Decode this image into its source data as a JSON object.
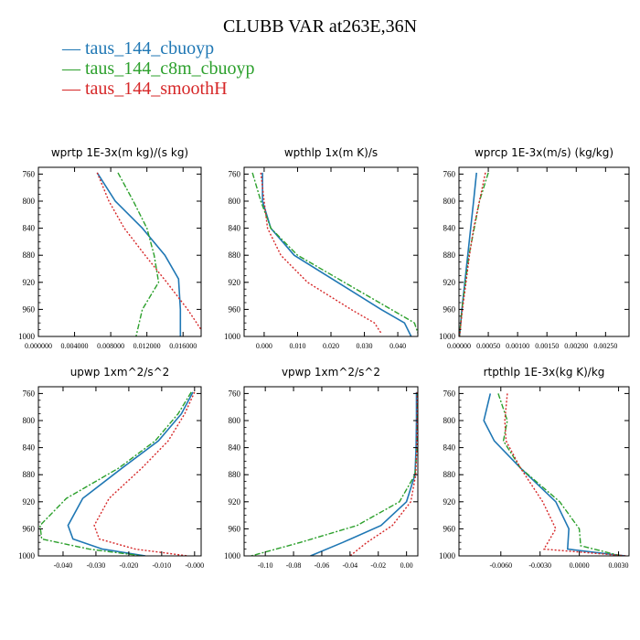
{
  "title": "CLUBB VAR at263E,36N",
  "legend": [
    {
      "label": "taus_144_cbuoyp",
      "color": "#1f77b4"
    },
    {
      "label": "taus_144_c8m_cbuoyp",
      "color": "#2ca02c"
    },
    {
      "label": "taus_144_smoothH",
      "color": "#d62728"
    }
  ],
  "chart_data": [
    {
      "type": "line",
      "title": "wprtp   1E-3x(m kg)/(s kg)",
      "xlabel": "",
      "ylabel": "",
      "xlim": [
        0.0,
        0.018
      ],
      "ylim": [
        1000,
        750
      ],
      "xticks": [
        0.0,
        0.004,
        0.008,
        0.012,
        0.016
      ],
      "xtick_labels": [
        "0.000000",
        "0.004000",
        "0.008000",
        "0.012000",
        "0.016000"
      ],
      "yticks": [
        760,
        800,
        840,
        880,
        920,
        960,
        1000
      ],
      "series": [
        {
          "name": "taus_144_cbuoyp",
          "x": [
            0.0065,
            0.0085,
            0.0115,
            0.014,
            0.0155,
            0.0157,
            0.0157
          ],
          "y": [
            758,
            800,
            840,
            880,
            915,
            960,
            1000
          ]
        },
        {
          "name": "taus_144_c8m_cbuoyp",
          "x": [
            0.0088,
            0.0105,
            0.012,
            0.0128,
            0.0133,
            0.0115,
            0.0108
          ],
          "y": [
            758,
            800,
            840,
            880,
            920,
            960,
            1000
          ]
        },
        {
          "name": "taus_144_smoothH",
          "x": [
            0.0065,
            0.0078,
            0.0095,
            0.0118,
            0.0142,
            0.0165,
            0.018
          ],
          "y": [
            758,
            800,
            840,
            880,
            920,
            960,
            990
          ]
        }
      ]
    },
    {
      "type": "line",
      "title": "wpthlp   1x(m K)/s",
      "xlabel": "",
      "ylabel": "",
      "xlim": [
        -0.006,
        0.046
      ],
      "ylim": [
        1000,
        750
      ],
      "xticks": [
        0.0,
        0.01,
        0.02,
        0.03,
        0.04
      ],
      "xtick_labels": [
        "0.000",
        "0.010",
        "0.020",
        "0.030",
        "0.040"
      ],
      "yticks": [
        760,
        800,
        840,
        880,
        920,
        960,
        1000
      ],
      "series": [
        {
          "name": "taus_144_cbuoyp",
          "x": [
            -0.0005,
            -0.0005,
            0.002,
            0.009,
            0.022,
            0.035,
            0.042,
            0.044
          ],
          "y": [
            758,
            800,
            840,
            880,
            920,
            960,
            980,
            1000
          ]
        },
        {
          "name": "taus_144_c8m_cbuoyp",
          "x": [
            -0.0035,
            -0.001,
            0.002,
            0.01,
            0.024,
            0.038,
            0.045,
            0.046
          ],
          "y": [
            758,
            800,
            840,
            880,
            920,
            960,
            980,
            995
          ]
        },
        {
          "name": "taus_144_smoothH",
          "x": [
            -0.001,
            0.0,
            0.001,
            0.005,
            0.013,
            0.026,
            0.033,
            0.035
          ],
          "y": [
            758,
            800,
            840,
            880,
            920,
            960,
            980,
            995
          ]
        }
      ]
    },
    {
      "type": "line",
      "title": "wprcp   1E-3x(m/s) (kg/kg)",
      "xlabel": "",
      "ylabel": "",
      "xlim": [
        0.0,
        0.0029
      ],
      "ylim": [
        1000,
        750
      ],
      "xticks": [
        0.0,
        0.0005,
        0.001,
        0.0015,
        0.002,
        0.0025
      ],
      "xtick_labels": [
        "0.00000",
        "0.00050",
        "0.00100",
        "0.00150",
        "0.00200",
        "0.00250"
      ],
      "yticks": [
        760,
        800,
        840,
        880,
        920,
        960,
        1000
      ],
      "series": [
        {
          "name": "taus_144_cbuoyp",
          "x": [
            0.0003,
            0.00025,
            0.0002,
            0.00015,
            0.0001,
            5e-05,
            1e-05
          ],
          "y": [
            758,
            800,
            840,
            880,
            920,
            960,
            1000
          ]
        },
        {
          "name": "taus_144_c8m_cbuoyp",
          "x": [
            0.0005,
            0.00035,
            0.00026,
            0.00017,
            0.00011,
            5e-05,
            1e-05
          ],
          "y": [
            758,
            800,
            840,
            880,
            920,
            960,
            1000
          ]
        },
        {
          "name": "taus_144_smoothH",
          "x": [
            0.00045,
            0.00035,
            0.00025,
            0.00018,
            0.00012,
            6e-05,
            1e-05
          ],
          "y": [
            758,
            800,
            840,
            880,
            920,
            960,
            1000
          ]
        }
      ]
    },
    {
      "type": "line",
      "title": "upwp   1xm^2/s^2",
      "xlabel": "",
      "ylabel": "",
      "xlim": [
        -0.0475,
        0.002
      ],
      "ylim": [
        1000,
        750
      ],
      "xticks": [
        -0.04,
        -0.03,
        -0.02,
        -0.01,
        0.0
      ],
      "xtick_labels": [
        "-0.040",
        "-0.030",
        "-0.020",
        "-0.010",
        "-0.000"
      ],
      "yticks": [
        760,
        800,
        840,
        880,
        920,
        960,
        1000
      ],
      "series": [
        {
          "name": "taus_144_cbuoyp",
          "x": [
            -0.0005,
            -0.004,
            -0.011,
            -0.022,
            -0.034,
            -0.0385,
            -0.037,
            -0.028,
            -0.015
          ],
          "y": [
            758,
            790,
            830,
            870,
            915,
            955,
            975,
            990,
            1000
          ]
        },
        {
          "name": "taus_144_c8m_cbuoyp",
          "x": [
            -0.001,
            -0.005,
            -0.012,
            -0.023,
            -0.039,
            -0.047,
            -0.0465,
            -0.032,
            -0.016
          ],
          "y": [
            758,
            790,
            830,
            870,
            915,
            955,
            975,
            990,
            1000
          ]
        },
        {
          "name": "taus_144_smoothH",
          "x": [
            0.0,
            -0.003,
            -0.008,
            -0.016,
            -0.026,
            -0.0305,
            -0.029,
            -0.018,
            -0.002
          ],
          "y": [
            758,
            790,
            830,
            870,
            915,
            955,
            975,
            990,
            1000
          ]
        }
      ]
    },
    {
      "type": "line",
      "title": "vpwp   1xm^2/s^2",
      "xlabel": "",
      "ylabel": "",
      "xlim": [
        -0.115,
        0.008
      ],
      "ylim": [
        1000,
        750
      ],
      "xticks": [
        -0.1,
        -0.08,
        -0.06,
        -0.04,
        -0.02,
        0.0
      ],
      "xtick_labels": [
        "-0.10",
        "-0.08",
        "-0.06",
        "-0.04",
        "-0.02",
        "0.00"
      ],
      "yticks": [
        760,
        800,
        840,
        880,
        920,
        960,
        1000
      ],
      "series": [
        {
          "name": "taus_144_cbuoyp",
          "x": [
            0.007,
            0.007,
            0.0068,
            0.006,
            0.0,
            -0.018,
            -0.045,
            -0.068
          ],
          "y": [
            758,
            800,
            840,
            880,
            920,
            955,
            980,
            1000
          ]
        },
        {
          "name": "taus_144_c8m_cbuoyp",
          "x": [
            0.0078,
            0.0078,
            0.0075,
            0.006,
            -0.005,
            -0.035,
            -0.075,
            -0.11
          ],
          "y": [
            758,
            800,
            840,
            880,
            920,
            955,
            980,
            1000
          ]
        },
        {
          "name": "taus_144_smoothH",
          "x": [
            0.0075,
            0.0075,
            0.0072,
            0.0065,
            0.003,
            -0.01,
            -0.028,
            -0.04
          ],
          "y": [
            758,
            800,
            840,
            880,
            920,
            955,
            980,
            1000
          ]
        }
      ]
    },
    {
      "type": "line",
      "title": "rtpthlp   1E-3x(kg K)/kg",
      "xlabel": "",
      "ylabel": "",
      "xlim": [
        -0.0092,
        0.0038
      ],
      "ylim": [
        1000,
        750
      ],
      "xticks": [
        -0.006,
        -0.003,
        0.0,
        0.003
      ],
      "xtick_labels": [
        "-0.0060",
        "-0.0030",
        "0.0000",
        "0.0030"
      ],
      "yticks": [
        760,
        800,
        840,
        880,
        920,
        960,
        1000
      ],
      "series": [
        {
          "name": "taus_144_cbuoyp",
          "x": [
            -0.0068,
            -0.0073,
            -0.0065,
            -0.0045,
            -0.0018,
            -0.0008,
            -0.0009,
            0.0035
          ],
          "y": [
            760,
            800,
            830,
            870,
            920,
            960,
            990,
            1000
          ]
        },
        {
          "name": "taus_144_c8m_cbuoyp",
          "x": [
            -0.0062,
            -0.0055,
            -0.0058,
            -0.0045,
            -0.0015,
            0.0,
            0.0001,
            0.0032
          ],
          "y": [
            760,
            800,
            830,
            870,
            920,
            960,
            985,
            1000
          ]
        },
        {
          "name": "taus_144_smoothH",
          "x": [
            -0.0055,
            -0.0057,
            -0.0056,
            -0.0045,
            -0.0028,
            -0.0018,
            -0.0027,
            0.0036
          ],
          "y": [
            760,
            800,
            830,
            870,
            920,
            960,
            990,
            1000
          ]
        }
      ]
    }
  ]
}
